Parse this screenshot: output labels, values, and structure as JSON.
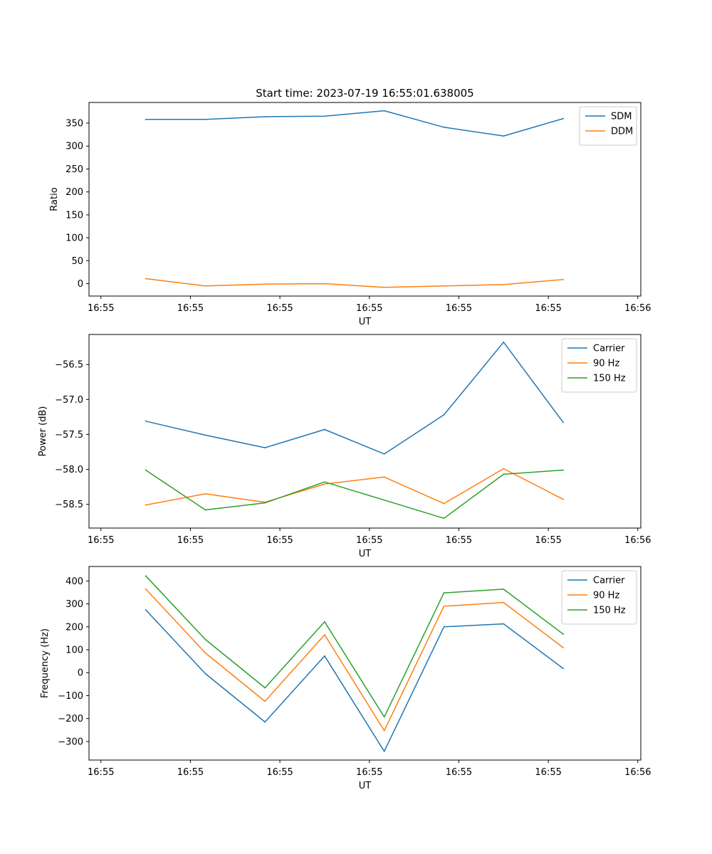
{
  "chart_data": [
    {
      "type": "line",
      "title": "Start time: 2023-07-19 16:55:01.638005",
      "xlabel": "UT",
      "ylabel": "Ratio",
      "xlim": [
        -0.45,
        8.8
      ],
      "ylim": [
        -27,
        395
      ],
      "x_ticks": [
        -0.25,
        1.25,
        2.75,
        4.25,
        5.75,
        7.25,
        8.75
      ],
      "x_tick_labels": [
        "16:55",
        "16:55",
        "16:55",
        "16:55",
        "16:55",
        "16:55",
        "16:56"
      ],
      "y_ticks": [
        0,
        50,
        100,
        150,
        200,
        250,
        300,
        350
      ],
      "y_tick_labels": [
        "0",
        "50",
        "100",
        "150",
        "200",
        "250",
        "300",
        "350"
      ],
      "x": [
        0.5,
        1.5,
        2.5,
        3.5,
        4.5,
        5.5,
        6.5,
        7.5
      ],
      "legend_position": "top-right",
      "series": [
        {
          "name": "SDM",
          "color": "#1f77b4",
          "values": [
            358,
            358,
            364,
            365,
            377,
            341,
            322,
            360
          ]
        },
        {
          "name": "DDM",
          "color": "#ff7f0e",
          "values": [
            11,
            -5,
            -1,
            0,
            -8,
            -5,
            -2,
            9
          ]
        }
      ]
    },
    {
      "type": "line",
      "title": "",
      "xlabel": "UT",
      "ylabel": "Power (dB)",
      "xlim": [
        -0.45,
        8.8
      ],
      "ylim": [
        -58.84,
        -56.07
      ],
      "x_ticks": [
        -0.25,
        1.25,
        2.75,
        4.25,
        5.75,
        7.25,
        8.75
      ],
      "x_tick_labels": [
        "16:55",
        "16:55",
        "16:55",
        "16:55",
        "16:55",
        "16:55",
        "16:56"
      ],
      "y_ticks": [
        -58.5,
        -58.0,
        -57.5,
        -57.0,
        -56.5
      ],
      "y_tick_labels": [
        "−58.5",
        "−58.0",
        "−57.5",
        "−57.0",
        "−56.5"
      ],
      "x": [
        0.5,
        1.5,
        2.5,
        3.5,
        4.5,
        5.5,
        6.5,
        7.5
      ],
      "legend_position": "top-right",
      "series": [
        {
          "name": "Carrier",
          "color": "#1f77b4",
          "values": [
            -57.31,
            -57.51,
            -57.69,
            -57.43,
            -57.78,
            -57.22,
            -56.18,
            -57.33
          ]
        },
        {
          "name": "90 Hz",
          "color": "#ff7f0e",
          "values": [
            -58.51,
            -58.35,
            -58.47,
            -58.21,
            -58.11,
            -58.49,
            -57.99,
            -58.43
          ]
        },
        {
          "name": "150 Hz",
          "color": "#2ca02c",
          "values": [
            -58.01,
            -58.58,
            -58.48,
            -58.18,
            -58.44,
            -58.7,
            -58.07,
            -58.01
          ]
        }
      ]
    },
    {
      "type": "line",
      "title": "",
      "xlabel": "UT",
      "ylabel": "Frequency (Hz)",
      "xlim": [
        -0.45,
        8.8
      ],
      "ylim": [
        -381,
        463
      ],
      "x_ticks": [
        -0.25,
        1.25,
        2.75,
        4.25,
        5.75,
        7.25,
        8.75
      ],
      "x_tick_labels": [
        "16:55",
        "16:55",
        "16:55",
        "16:55",
        "16:55",
        "16:55",
        "16:56"
      ],
      "y_ticks": [
        -300,
        -200,
        -100,
        0,
        100,
        200,
        300,
        400
      ],
      "y_tick_labels": [
        "−300",
        "−200",
        "−100",
        "0",
        "100",
        "200",
        "300",
        "400"
      ],
      "x": [
        0.5,
        1.5,
        2.5,
        3.5,
        4.5,
        5.5,
        6.5,
        7.5
      ],
      "legend_position": "top-right",
      "series": [
        {
          "name": "Carrier",
          "color": "#1f77b4",
          "values": [
            274,
            -4,
            -215,
            73,
            -343,
            200,
            213,
            18
          ]
        },
        {
          "name": "90 Hz",
          "color": "#ff7f0e",
          "values": [
            365,
            86,
            -125,
            165,
            -253,
            290,
            306,
            109
          ]
        },
        {
          "name": "150 Hz",
          "color": "#2ca02c",
          "values": [
            422,
            145,
            -66,
            222,
            -193,
            348,
            364,
            168
          ]
        }
      ]
    }
  ]
}
